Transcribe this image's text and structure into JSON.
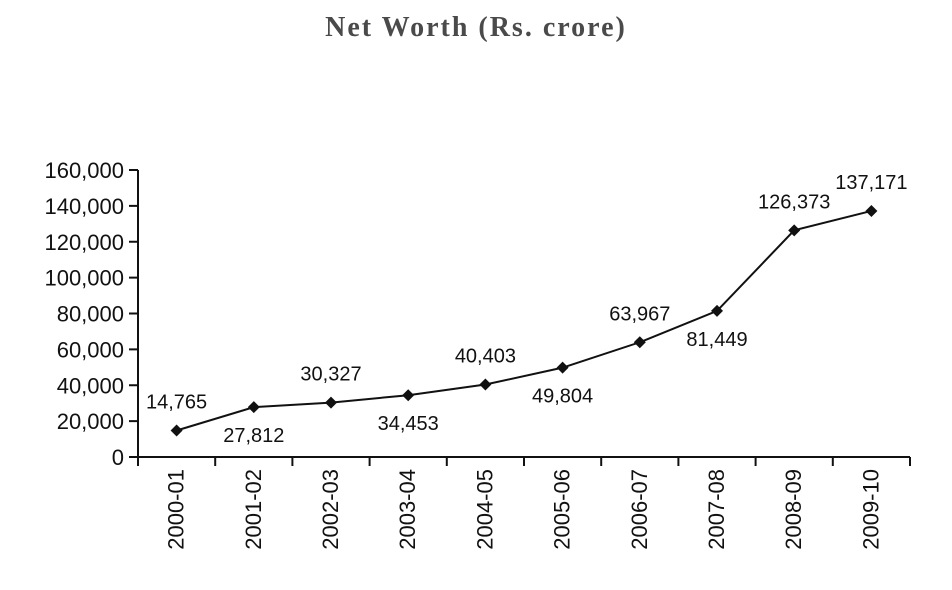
{
  "chart_data": {
    "type": "line",
    "title": "Net Worth (Rs. crore)",
    "xlabel": "",
    "ylabel": "",
    "categories": [
      "2000-01",
      "2001-02",
      "2002-03",
      "2003-04",
      "2004-05",
      "2005-06",
      "2006-07",
      "2007-08",
      "2008-09",
      "2009-10"
    ],
    "series": [
      {
        "values": [
          14765,
          27812,
          30327,
          34453,
          40403,
          49804,
          63967,
          81449,
          126373,
          137171
        ],
        "labels": [
          "14,765",
          "27,812",
          "30,327",
          "34,453",
          "40,403",
          "49,804",
          "63,967",
          "81,449",
          "126,373",
          "137,171"
        ]
      }
    ],
    "yticks": [
      "0",
      "20,000",
      "40,000",
      "60,000",
      "80,000",
      "100,000",
      "120,000",
      "140,000",
      "160,000"
    ],
    "ylim": [
      0,
      160000
    ],
    "grid": false,
    "legend": "none",
    "colors": {
      "line": "#111111",
      "marker": "#111111",
      "axis": "#111111"
    }
  }
}
